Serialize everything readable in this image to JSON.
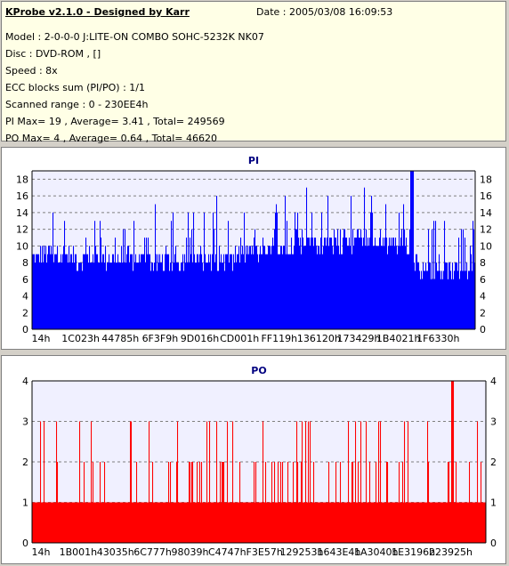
{
  "header": {
    "title": "KProbe v2.1.0 - Designed by Karr",
    "date": "Date : 2005/03/08 16:09:53",
    "lines": [
      "Model : 2-0-0-0 J:LITE-ON COMBO SOHC-5232K NK07",
      "Disc : DVD-ROM ,  []",
      "Speed : 8x",
      "ECC blocks sum (PI/PO) : 1/1",
      "Scanned range : 0 - 230EE4h",
      "PI Max= 19 , Average= 3.41 , Total= 249569",
      "PO Max= 4 , Average= 0.64 , Total= 46620"
    ]
  },
  "chart_data": [
    {
      "type": "bar",
      "title": "PI",
      "color": "#0000ff",
      "ylim": [
        0,
        19
      ],
      "yticks": [
        0,
        2,
        4,
        6,
        8,
        10,
        12,
        14,
        16,
        18
      ],
      "xticklabels": [
        "14h",
        "1C023h",
        "44785h",
        "6F3F9h",
        "9D016h",
        "CD001h",
        "FF119h",
        "136120h",
        "173429h",
        "1B4021h",
        "1F6330h"
      ],
      "grid": true,
      "profile_x_fraction": [
        0.0,
        0.05,
        0.1,
        0.2,
        0.3,
        0.4,
        0.45,
        0.5,
        0.6,
        0.7,
        0.75,
        0.8,
        0.85,
        0.88,
        0.9,
        0.95,
        1.0
      ],
      "profile_y": [
        8,
        9,
        8,
        8,
        7.5,
        8,
        8,
        9,
        9.5,
        10,
        10.5,
        10,
        9.5,
        6,
        6.5,
        6.5,
        7
      ],
      "peaks": [
        12,
        14,
        13,
        12,
        11,
        13,
        15,
        14,
        16,
        17,
        18,
        19,
        16,
        14
      ],
      "max": 19
    },
    {
      "type": "bar",
      "title": "PO",
      "color": "#ff0000",
      "ylim": [
        0,
        4
      ],
      "yticks": [
        0,
        1,
        2,
        3,
        4
      ],
      "xticklabels": [
        "14h",
        "1B001h",
        "43035h",
        "6C777h",
        "98039h",
        "C4747h",
        "F3E57h",
        "129253h",
        "1643E4h",
        "1A3040h",
        "1E3196h",
        "223925h"
      ],
      "grid": true,
      "base_level": 1,
      "common_levels": [
        2,
        3
      ],
      "max": 4
    }
  ]
}
